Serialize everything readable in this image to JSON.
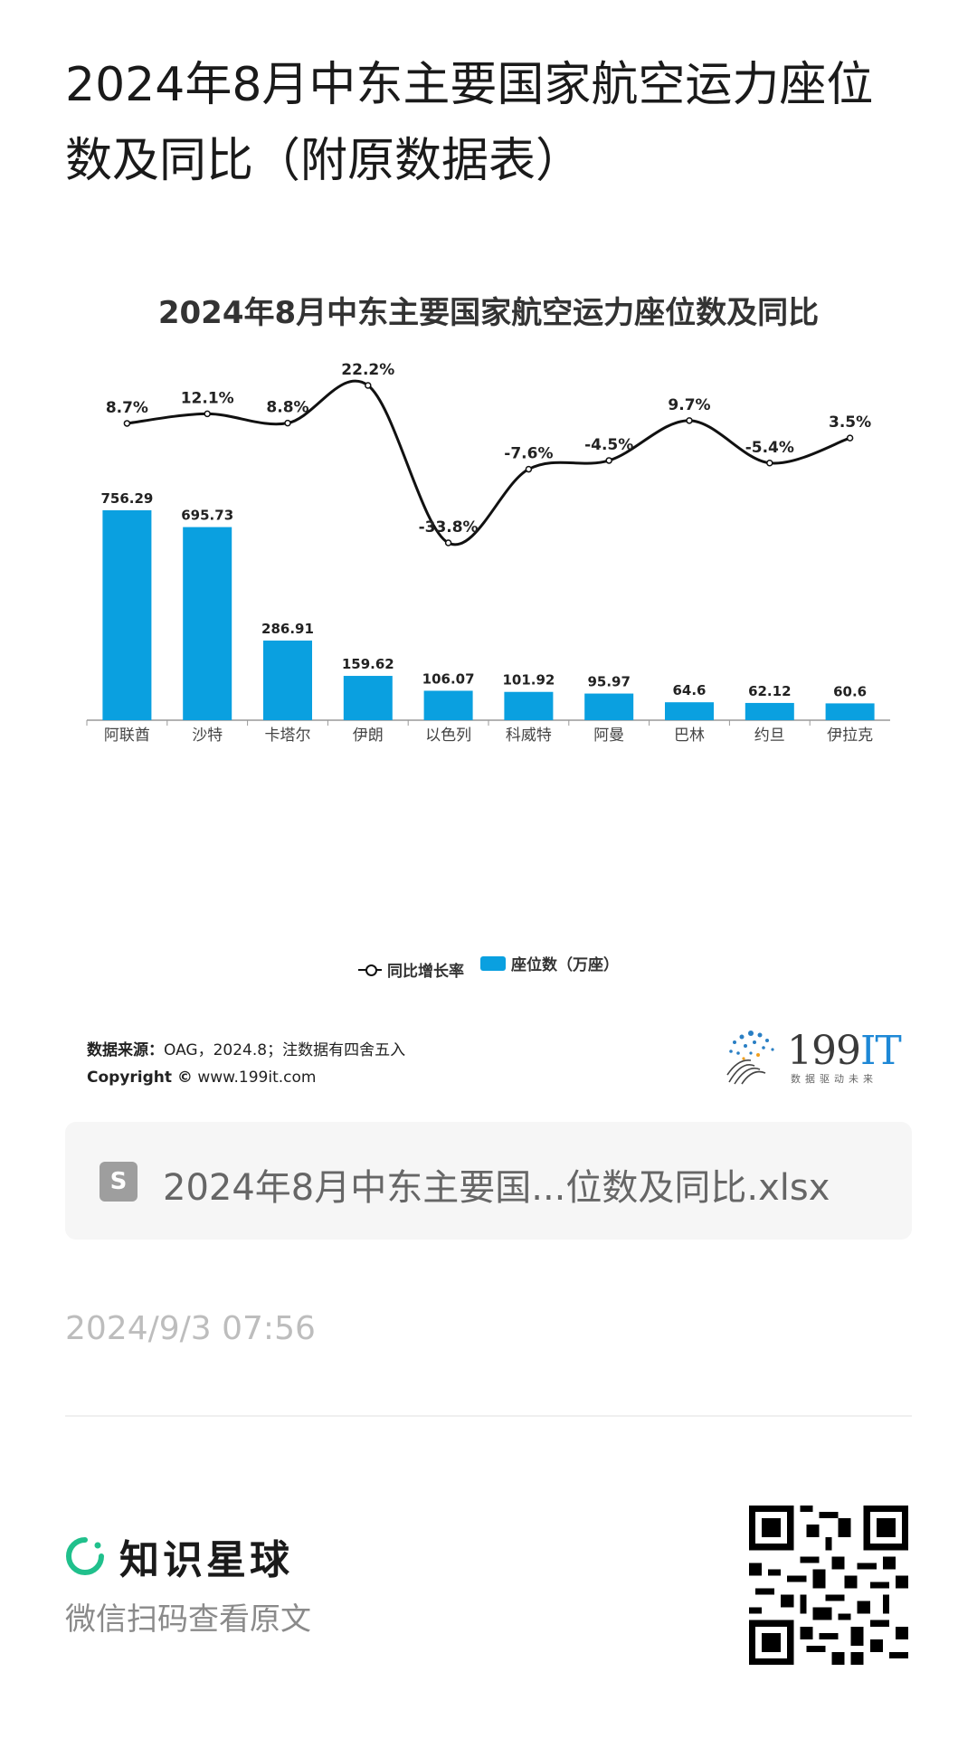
{
  "page_title": "2024年8月中东主要国家航空运力座位数及同比（附原数据表）",
  "chart_data": {
    "type": "bar",
    "title": "2024年8月中东主要国家航空运力座位数及同比",
    "categories": [
      "阿联酋",
      "沙特",
      "卡塔尔",
      "伊朗",
      "以色列",
      "科威特",
      "阿曼",
      "巴林",
      "约旦",
      "伊拉克"
    ],
    "series": [
      {
        "name": "座位数（万座）",
        "type": "bar",
        "color": "#0aa0e0",
        "values": [
          756.29,
          695.73,
          286.91,
          159.62,
          106.07,
          101.92,
          95.97,
          64.6,
          62.12,
          60.6
        ],
        "labels": [
          "756.29",
          "695.73",
          "286.91",
          "159.62",
          "106.07",
          "101.92",
          "95.97",
          "64.6",
          "62.12",
          "60.6"
        ]
      },
      {
        "name": "同比增长率",
        "type": "line",
        "color": "#111111",
        "values": [
          8.7,
          12.1,
          8.8,
          22.2,
          -33.8,
          -7.6,
          -4.5,
          9.7,
          -5.4,
          3.5
        ],
        "labels": [
          "8.7%",
          "12.1%",
          "8.8%",
          "22.2%",
          "-33.8%",
          "-7.6%",
          "-4.5%",
          "9.7%",
          "-5.4%",
          "3.5%"
        ]
      }
    ],
    "legend": {
      "position": "bottom",
      "items": [
        "同比增长率",
        "座位数（万座）"
      ]
    },
    "grid": false
  },
  "source": {
    "label": "数据来源：",
    "text": "OAG，2024.8；注数据有四舍五入",
    "copyright_label": "Copyright ©",
    "copyright_text": "www.199it.com"
  },
  "logo": {
    "text": "199",
    "text_accent": "IT",
    "sub": "数据驱动未来"
  },
  "file": {
    "icon_letter": "S",
    "name": "2024年8月中东主要国...位数及同比.xlsx"
  },
  "timestamp": "2024/9/3 07:56",
  "footer": {
    "brand_name": "知识星球",
    "brand_sub": "微信扫码查看原文",
    "brand_color": "#20c08c"
  }
}
